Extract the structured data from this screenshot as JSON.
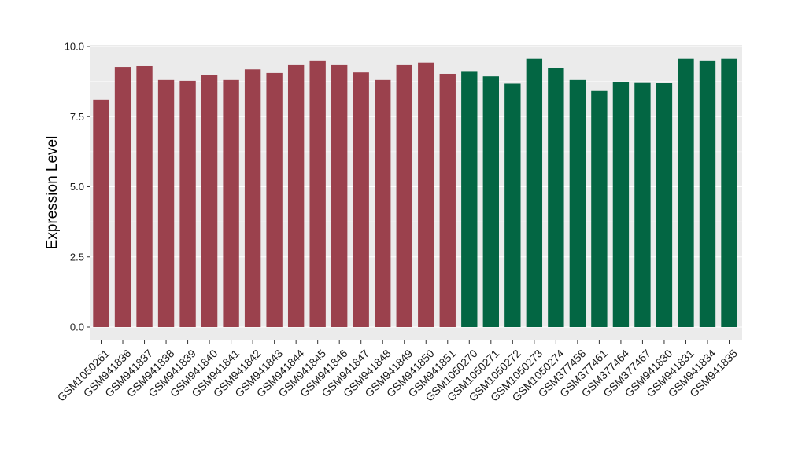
{
  "chart_data": {
    "type": "bar",
    "title": "",
    "xlabel": "",
    "ylabel": "Expression Level",
    "ylim": [
      0,
      10
    ],
    "yticks": [
      "0.0",
      "2.5",
      "5.0",
      "7.5",
      "10.0"
    ],
    "grid": true,
    "legend": "none",
    "categories": [
      "GSM1050261",
      "GSM941836",
      "GSM941837",
      "GSM941838",
      "GSM941839",
      "GSM941840",
      "GSM941841",
      "GSM941842",
      "GSM941843",
      "GSM941844",
      "GSM941845",
      "GSM941846",
      "GSM941847",
      "GSM941848",
      "GSM941849",
      "GSM941850",
      "GSM941851",
      "GSM1050270",
      "GSM1050271",
      "GSM1050272",
      "GSM1050273",
      "GSM1050274",
      "GSM377458",
      "GSM377461",
      "GSM377464",
      "GSM377467",
      "GSM941830",
      "GSM941831",
      "GSM941834",
      "GSM941835"
    ],
    "values": [
      8.1,
      9.27,
      9.3,
      8.8,
      8.77,
      8.98,
      8.8,
      9.18,
      9.05,
      9.33,
      9.5,
      9.33,
      9.07,
      8.8,
      9.33,
      9.42,
      9.02,
      9.12,
      8.93,
      8.67,
      9.56,
      9.23,
      8.8,
      8.41,
      8.74,
      8.72,
      8.69,
      9.56,
      9.5,
      9.56
    ],
    "groups": [
      0,
      0,
      0,
      0,
      0,
      0,
      0,
      0,
      0,
      0,
      0,
      0,
      0,
      0,
      0,
      0,
      0,
      1,
      1,
      1,
      1,
      1,
      1,
      1,
      1,
      1,
      1,
      1,
      1,
      1
    ],
    "colors": [
      "#9b414d",
      "#036643"
    ],
    "panel_background": "#ebebeb",
    "grid_color": "#ffffff"
  }
}
